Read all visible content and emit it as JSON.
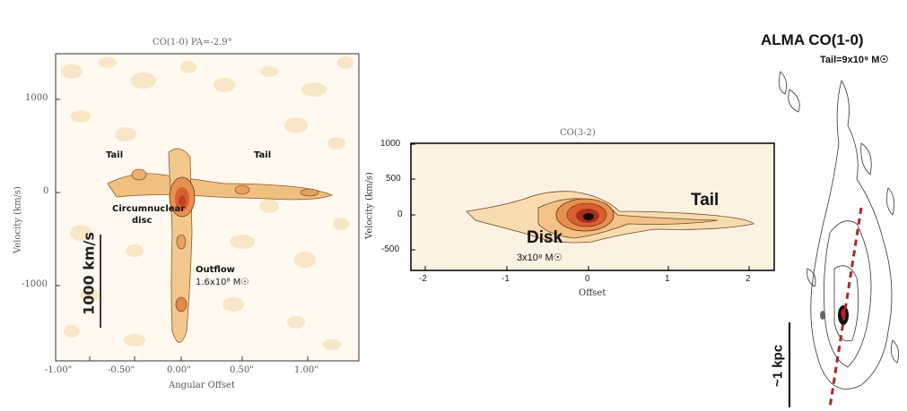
{
  "panel1": {
    "title": "CO(1-0)    PA=-2.9°",
    "ylabel": "Velocity (km/s)",
    "xlabel": "Angular Offset",
    "yticks": [
      "1000",
      "0",
      "-1000"
    ],
    "xticks": [
      "-1.00\"",
      "-0.50\"",
      "0.00\"",
      "0.50\"",
      "1.00\""
    ],
    "labels": {
      "tail_left": "Tail",
      "tail_right": "Tail",
      "circumnuclear_1": "Circumnuclear",
      "circumnuclear_2": "disc",
      "outflow": "Outflow",
      "outflow_mass": "1.6x10⁸ M☉",
      "scale": "1000 km/s"
    }
  },
  "panel2": {
    "title": "CO(3-2)",
    "ylabel": "Velocity (km/s)",
    "xlabel": "Offset",
    "yticks": [
      "1000",
      "500",
      "0",
      "-500"
    ],
    "xticks": [
      "-2",
      "-1",
      "0",
      "1",
      "2"
    ],
    "labels": {
      "tail": "Tail",
      "disk": "Disk",
      "disk_mass": "3x10⁸ M☉"
    }
  },
  "panel3": {
    "title": "ALMA CO(1-0)",
    "tail_mass": "Tail=9x10⁹ M☉",
    "scale": "~1 kpc"
  },
  "colors": {
    "light_orange": "#f7e3c0",
    "mid_orange": "#f0b070",
    "dark_orange": "#e07030",
    "red": "#c03020",
    "black": "#000000",
    "dashed_line": "#a52a2a"
  }
}
